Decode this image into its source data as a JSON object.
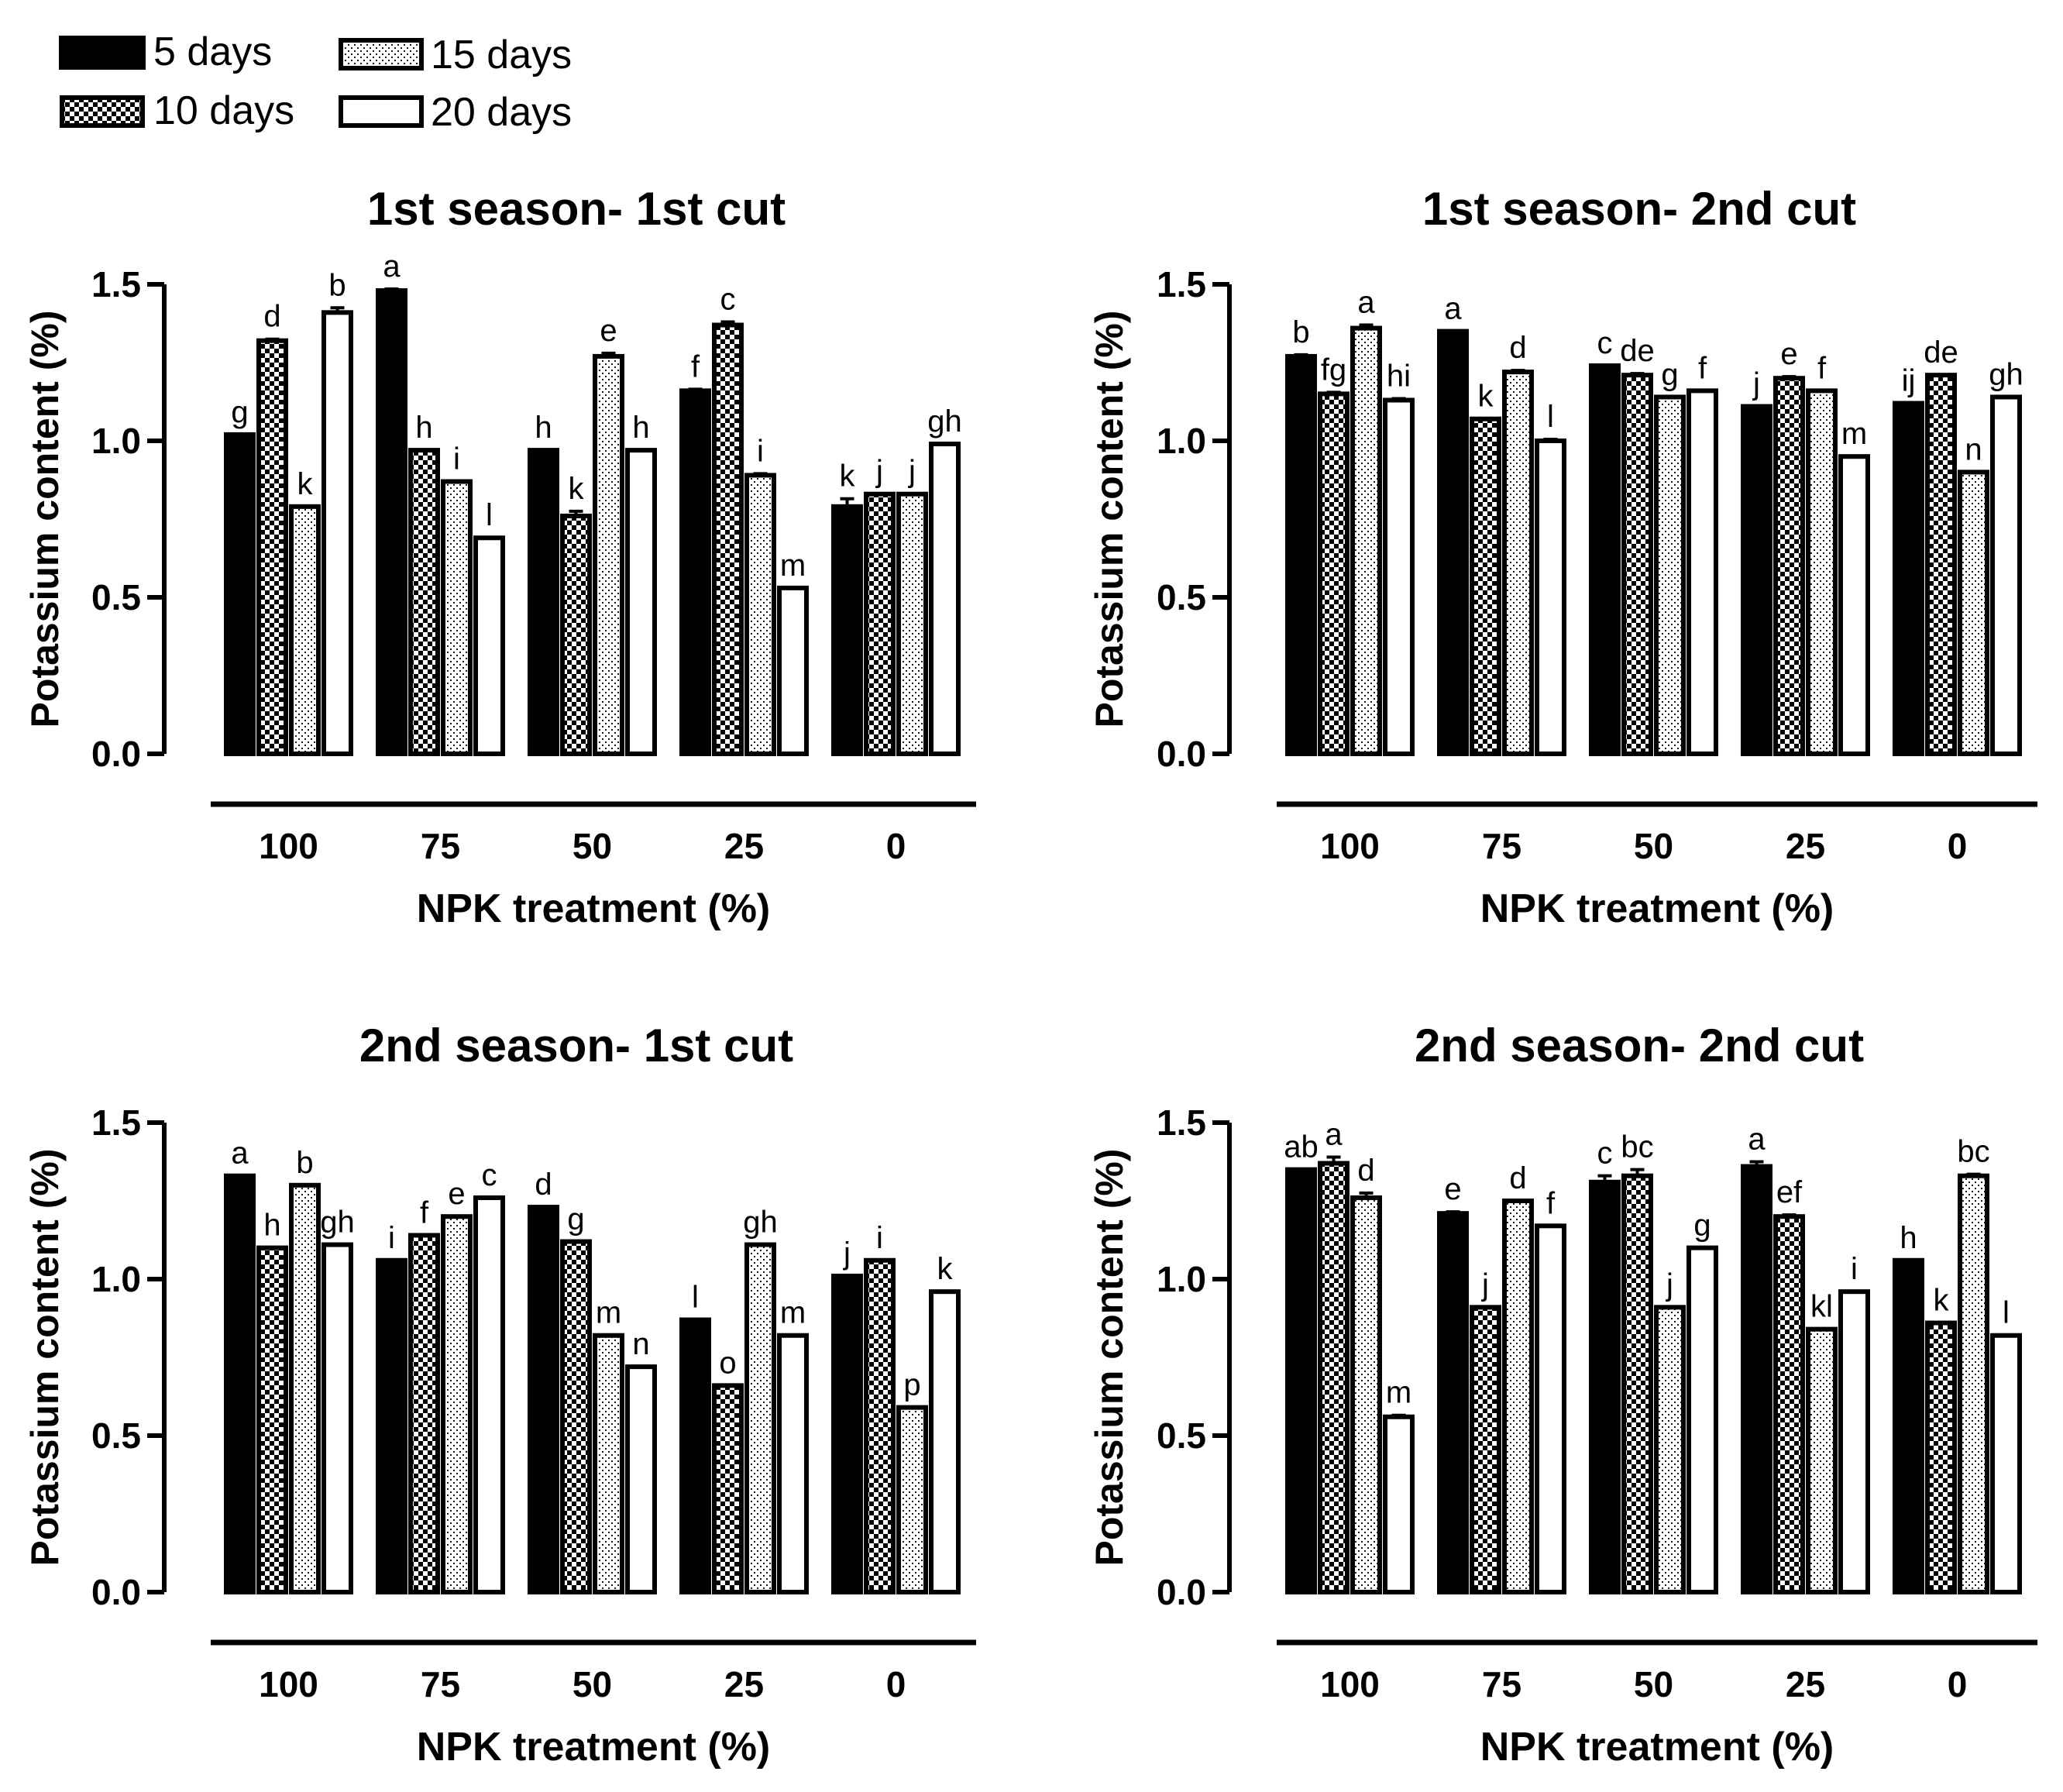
{
  "legend": {
    "items": [
      {
        "label": "5 days",
        "pattern": "solid"
      },
      {
        "label": "10 days",
        "pattern": "checker"
      },
      {
        "label": "15 days",
        "pattern": "dots"
      },
      {
        "label": "20 days",
        "pattern": "empty"
      }
    ]
  },
  "colors": {
    "ink": "#000000",
    "background": "#ffffff"
  },
  "chart_data": [
    {
      "type": "bar",
      "title": "1st season- 1st cut",
      "xlabel": "NPK treatment (%)",
      "ylabel": "Potassium content (%)",
      "ylim": [
        0,
        1.5
      ],
      "yticks": [
        "0.0",
        "0.5",
        "1.0",
        "1.5"
      ],
      "categories": [
        "100",
        "75",
        "50",
        "25",
        "0"
      ],
      "series": [
        {
          "name": "5 days",
          "values": [
            1.02,
            1.48,
            0.97,
            1.16,
            0.79
          ]
        },
        {
          "name": "10 days",
          "values": [
            1.32,
            0.97,
            0.76,
            1.37,
            0.83
          ]
        },
        {
          "name": "15 days",
          "values": [
            0.79,
            0.87,
            1.27,
            0.89,
            0.83
          ]
        },
        {
          "name": "20 days",
          "values": [
            1.41,
            0.69,
            0.97,
            0.53,
            0.99
          ]
        }
      ],
      "errors": [
        [
          0,
          0.005,
          0,
          0.005,
          0.025
        ],
        [
          0.005,
          0,
          0.015,
          0.01,
          0
        ],
        [
          0,
          0,
          0.01,
          0.005,
          0
        ],
        [
          0.015,
          0,
          0,
          0,
          0
        ]
      ],
      "letters": [
        [
          "g",
          "a",
          "h",
          "f",
          "k"
        ],
        [
          "d",
          "h",
          "k",
          "c",
          "j"
        ],
        [
          "k",
          "i",
          "e",
          "i",
          "j"
        ],
        [
          "b",
          "l",
          "h",
          "m",
          "gh"
        ]
      ]
    },
    {
      "type": "bar",
      "title": "1st season- 2nd cut",
      "xlabel": "NPK treatment (%)",
      "ylabel": "Potassium content (%)",
      "ylim": [
        0,
        1.5
      ],
      "yticks": [
        "0.0",
        "0.5",
        "1.0",
        "1.5"
      ],
      "categories": [
        "100",
        "75",
        "50",
        "25",
        "0"
      ],
      "series": [
        {
          "name": "5 days",
          "values": [
            1.27,
            1.35,
            1.24,
            1.11,
            1.12
          ]
        },
        {
          "name": "10 days",
          "values": [
            1.15,
            1.07,
            1.21,
            1.2,
            1.21
          ]
        },
        {
          "name": "15 days",
          "values": [
            1.36,
            1.22,
            1.14,
            1.16,
            0.9
          ]
        },
        {
          "name": "20 days",
          "values": [
            1.13,
            1.0,
            1.16,
            0.95,
            1.14
          ]
        }
      ],
      "errors": [
        [
          0.005,
          0,
          0,
          0,
          0
        ],
        [
          0.005,
          0,
          0.005,
          0.005,
          0
        ],
        [
          0.01,
          0.005,
          0,
          0,
          0
        ],
        [
          0.005,
          0.005,
          0,
          0,
          0
        ]
      ],
      "letters": [
        [
          "b",
          "a",
          "c",
          "j",
          "ij"
        ],
        [
          "fg",
          "k",
          "de",
          "e",
          "de"
        ],
        [
          "a",
          "d",
          "g",
          "f",
          "n"
        ],
        [
          "hi",
          "l",
          "f",
          "m",
          "gh"
        ]
      ]
    },
    {
      "type": "bar",
      "title": "2nd season- 1st cut",
      "xlabel": "NPK treatment (%)",
      "ylabel": "Potassium content (%)",
      "ylim": [
        0,
        1.5
      ],
      "yticks": [
        "0.0",
        "0.5",
        "1.0",
        "1.5"
      ],
      "categories": [
        "100",
        "75",
        "50",
        "25",
        "0"
      ],
      "series": [
        {
          "name": "5 days",
          "values": [
            1.33,
            1.06,
            1.23,
            0.87,
            1.01
          ]
        },
        {
          "name": "10 days",
          "values": [
            1.1,
            1.14,
            1.12,
            0.66,
            1.06
          ]
        },
        {
          "name": "15 days",
          "values": [
            1.3,
            1.2,
            0.82,
            1.11,
            0.59
          ]
        },
        {
          "name": "20 days",
          "values": [
            1.11,
            1.26,
            0.72,
            0.82,
            0.96
          ]
        }
      ],
      "errors": [
        [
          0,
          0,
          0,
          0,
          0
        ],
        [
          0,
          0,
          0,
          0,
          0
        ],
        [
          0,
          0,
          0,
          0,
          0
        ],
        [
          0,
          0,
          0,
          0,
          0
        ]
      ],
      "letters": [
        [
          "a",
          "i",
          "d",
          "l",
          "j"
        ],
        [
          "h",
          "f",
          "g",
          "o",
          "i"
        ],
        [
          "b",
          "e",
          "m",
          "gh",
          "p"
        ],
        [
          "gh",
          "c",
          "n",
          "m",
          "k"
        ]
      ]
    },
    {
      "type": "bar",
      "title": "2nd season- 2nd cut",
      "xlabel": "NPK treatment (%)",
      "ylabel": "Potassium content (%)",
      "ylim": [
        0,
        1.5
      ],
      "yticks": [
        "0.0",
        "0.5",
        "1.0",
        "1.5"
      ],
      "categories": [
        "100",
        "75",
        "50",
        "25",
        "0"
      ],
      "series": [
        {
          "name": "5 days",
          "values": [
            1.35,
            1.21,
            1.31,
            1.36,
            1.06
          ]
        },
        {
          "name": "10 days",
          "values": [
            1.37,
            0.91,
            1.33,
            1.2,
            0.86
          ]
        },
        {
          "name": "15 days",
          "values": [
            1.26,
            1.25,
            0.91,
            0.84,
            1.33
          ]
        },
        {
          "name": "20 days",
          "values": [
            0.56,
            1.17,
            1.1,
            0.96,
            0.82
          ]
        }
      ],
      "errors": [
        [
          0,
          0.005,
          0.02,
          0.015,
          0
        ],
        [
          0.02,
          0,
          0.02,
          0.005,
          0
        ],
        [
          0.015,
          0,
          0,
          0,
          0.005
        ],
        [
          0.005,
          0,
          0,
          0,
          0
        ]
      ],
      "letters": [
        [
          "ab",
          "e",
          "c",
          "a",
          "h"
        ],
        [
          "a",
          "j",
          "bc",
          "ef",
          "k"
        ],
        [
          "d",
          "d",
          "j",
          "kl",
          "bc"
        ],
        [
          "m",
          "f",
          "g",
          "i",
          "l"
        ]
      ]
    }
  ]
}
